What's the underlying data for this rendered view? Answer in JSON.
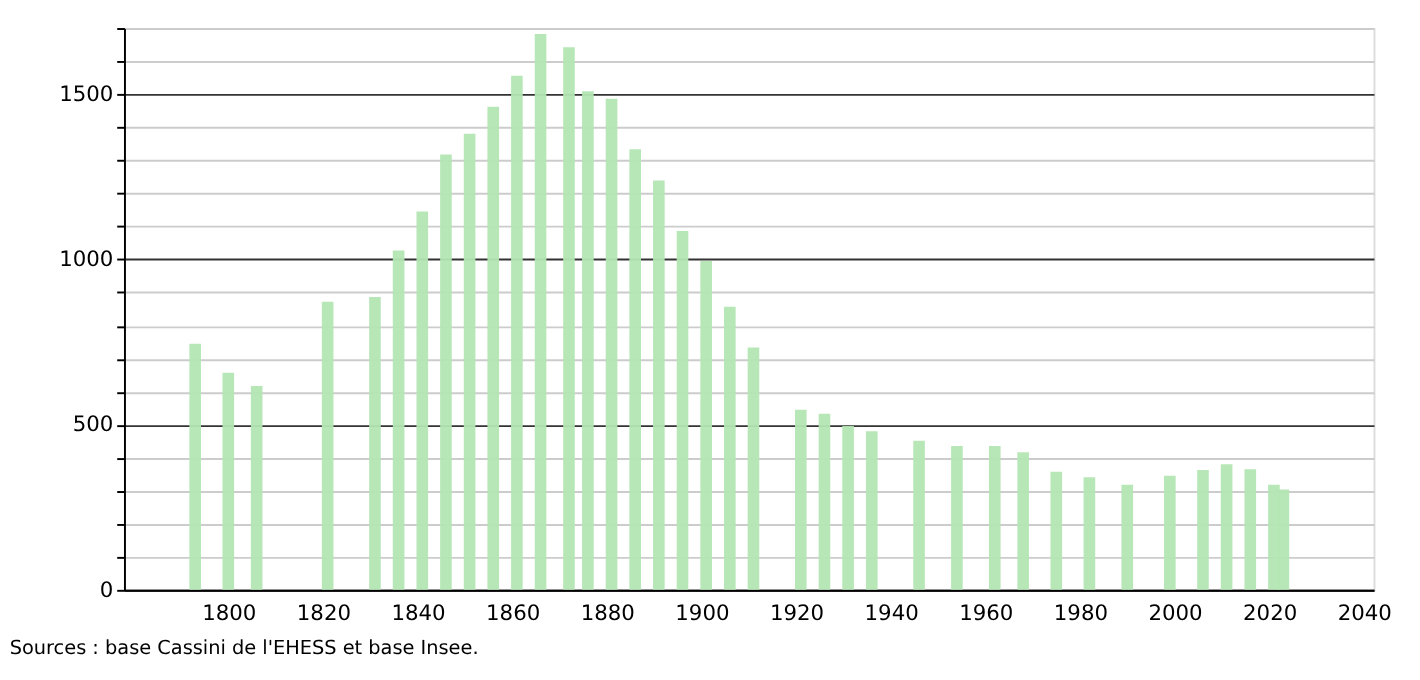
{
  "chart_data": {
    "type": "bar",
    "x": [
      1793,
      1800,
      1806,
      1821,
      1831,
      1836,
      1841,
      1846,
      1851,
      1856,
      1861,
      1866,
      1872,
      1876,
      1881,
      1886,
      1891,
      1896,
      1901,
      1906,
      1911,
      1921,
      1926,
      1931,
      1936,
      1946,
      1954,
      1962,
      1968,
      1975,
      1982,
      1990,
      1999,
      2006,
      2011,
      2016,
      2021,
      2023
    ],
    "values": [
      745,
      657,
      617,
      872,
      886,
      1027,
      1145,
      1317,
      1380,
      1462,
      1556,
      1682,
      1642,
      1509,
      1486,
      1333,
      1239,
      1086,
      995,
      857,
      733,
      545,
      533,
      496,
      480,
      451,
      435,
      435,
      416,
      357,
      341,
      318,
      345,
      363,
      380,
      365,
      318,
      304
    ],
    "color": "#b3e6b3",
    "xlim": [
      1780,
      2040
    ],
    "xticks": [
      1800,
      1820,
      1840,
      1860,
      1880,
      1900,
      1920,
      1940,
      1960,
      1980,
      2000,
      2020,
      2040
    ],
    "ylim": [
      0,
      1700
    ],
    "yticks": [
      0,
      {
        "value": 100,
        "label": null
      },
      {
        "value": 200,
        "label": null
      },
      {
        "value": 300,
        "label": null
      },
      {
        "value": 400,
        "label": null
      },
      500,
      {
        "value": 600,
        "label": null
      },
      {
        "value": 700,
        "label": null
      },
      {
        "value": 800,
        "label": null
      },
      {
        "value": 900,
        "label": null
      },
      1000,
      {
        "value": 1100,
        "label": null
      },
      {
        "value": 1200,
        "label": null
      },
      {
        "value": 1300,
        "label": null
      },
      {
        "value": 1400,
        "label": null
      },
      1500,
      {
        "value": 1600,
        "label": null
      },
      {
        "value": 1700,
        "label": null
      }
    ],
    "grid": "y",
    "annotations": [
      "Sources : base Cassini de l'EHESS et base Insee."
    ]
  }
}
